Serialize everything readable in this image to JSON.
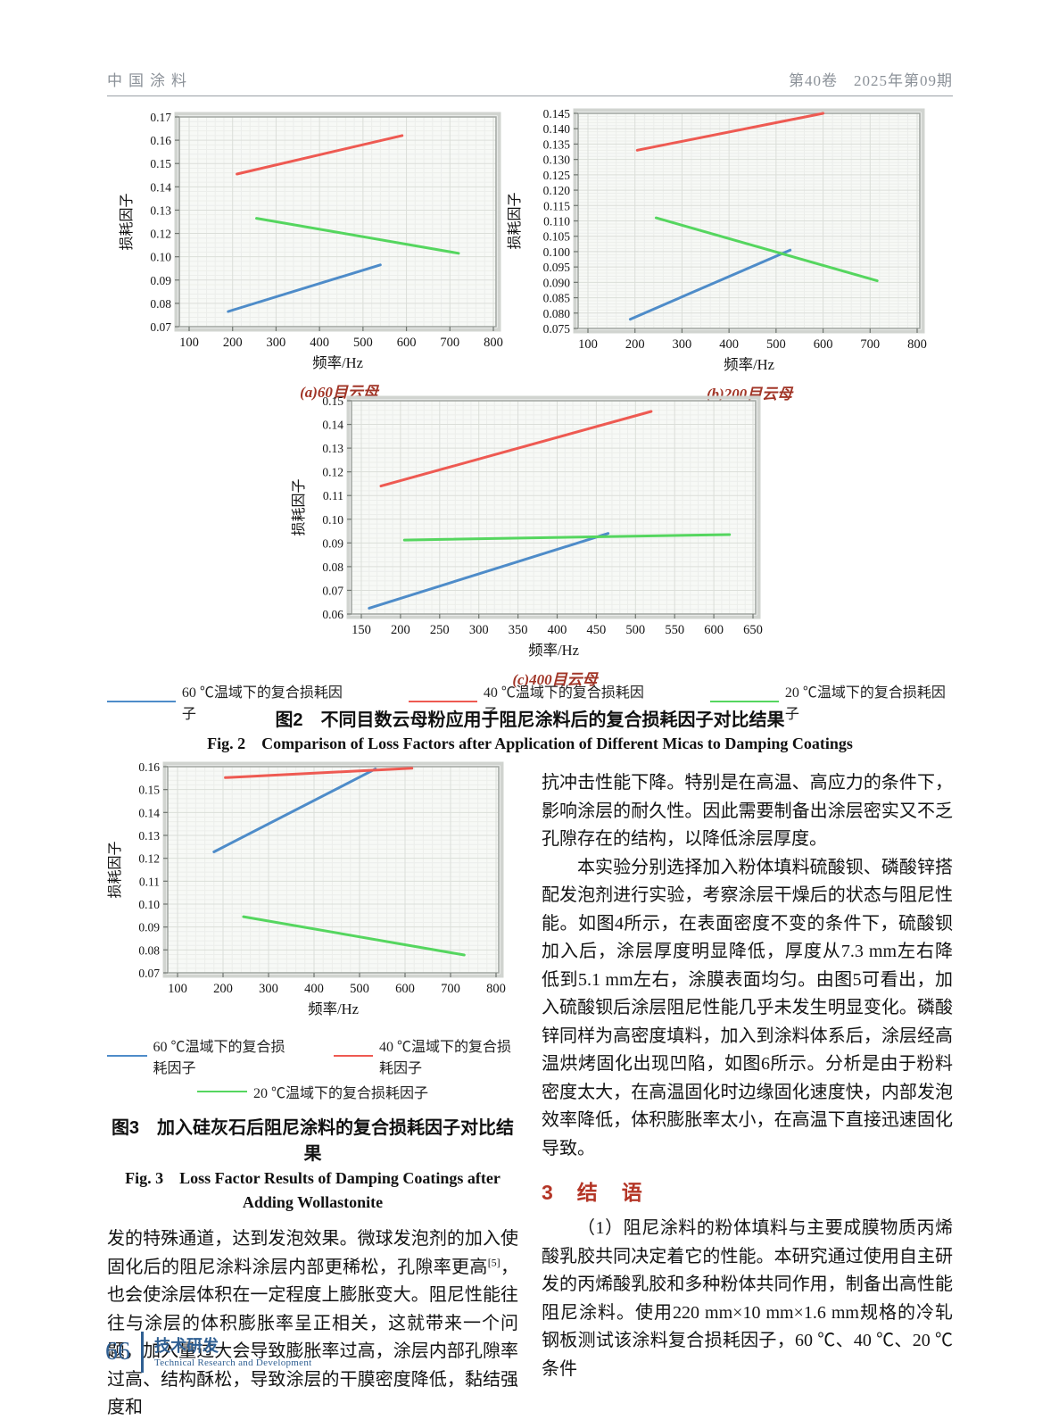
{
  "header": {
    "journal": "中国涂料",
    "issue": "第40卷　2025年第09期"
  },
  "colors": {
    "blue": "#4e8cc9",
    "red": "#ee5a52",
    "green": "#55d65f",
    "caption_red": "#a13527",
    "heading_red": "#b43526",
    "footer_blue": "#2f5f92"
  },
  "chart_data": [
    {
      "id": "fig2a",
      "type": "line",
      "caption": "(a)60目云母",
      "xlabel": "频率/Hz",
      "ylabel": "损耗因子",
      "x_ticks": [
        100,
        200,
        300,
        400,
        500,
        600,
        700,
        800
      ],
      "y_ticks": [
        0.07,
        0.08,
        0.09,
        0.1,
        0.12,
        0.13,
        0.14,
        0.15,
        0.16,
        0.17
      ],
      "y_tick_labels": [
        "0.07",
        "0.08",
        "0.09",
        "0.10",
        "0.12",
        "0.13",
        "0.14",
        "0.15",
        "0.16",
        "0.17"
      ],
      "grid": true,
      "legend_position": "below-figure",
      "series": [
        {
          "name": "60 ℃温域下的复合损耗因子",
          "color": "blue",
          "points": [
            [
              190,
              0.0765
            ],
            [
              540,
              0.0965
            ]
          ]
        },
        {
          "name": "40 ℃温域下的复合损耗因子",
          "color": "red",
          "points": [
            [
              210,
              0.1455
            ],
            [
              590,
              0.162
            ]
          ]
        },
        {
          "name": "20 ℃温域下的复合损耗因子",
          "color": "green",
          "points": [
            [
              255,
              0.1265
            ],
            [
              720,
              0.103
            ]
          ]
        }
      ]
    },
    {
      "id": "fig2b",
      "type": "line",
      "caption": "(b)200目云母",
      "xlabel": "频率/Hz",
      "ylabel": "损耗因子",
      "x_ticks": [
        100,
        200,
        300,
        400,
        500,
        600,
        700,
        800
      ],
      "y_ticks": [
        0.075,
        0.08,
        0.085,
        0.09,
        0.095,
        0.1,
        0.105,
        0.11,
        0.115,
        0.12,
        0.125,
        0.13,
        0.135,
        0.14,
        0.145
      ],
      "y_tick_labels": [
        "0.075",
        "0.080",
        "0.085",
        "0.090",
        "0.095",
        "0.100",
        "0.105",
        "0.110",
        "0.115",
        "0.120",
        "0.125",
        "0.130",
        "0.135",
        "0.140",
        "0.145"
      ],
      "grid": true,
      "legend_position": "below-figure",
      "series": [
        {
          "name": "60 ℃温域下的复合损耗因子",
          "color": "blue",
          "points": [
            [
              190,
              0.078
            ],
            [
              530,
              0.1005
            ]
          ]
        },
        {
          "name": "40 ℃温域下的复合损耗因子",
          "color": "red",
          "points": [
            [
              205,
              0.133
            ],
            [
              600,
              0.145
            ]
          ]
        },
        {
          "name": "20 ℃温域下的复合损耗因子",
          "color": "green",
          "points": [
            [
              245,
              0.111
            ],
            [
              715,
              0.0905
            ]
          ]
        }
      ]
    },
    {
      "id": "fig2c",
      "type": "line",
      "caption": "(c)400目云母",
      "xlabel": "频率/Hz",
      "ylabel": "损耗因子",
      "x_ticks": [
        150,
        200,
        250,
        300,
        350,
        400,
        450,
        500,
        550,
        600,
        650
      ],
      "y_ticks": [
        0.06,
        0.07,
        0.08,
        0.09,
        0.1,
        0.11,
        0.12,
        0.13,
        0.14,
        0.15
      ],
      "y_tick_labels": [
        "0.06",
        "0.07",
        "0.08",
        "0.09",
        "0.10",
        "0.11",
        "0.12",
        "0.13",
        "0.14",
        "0.15"
      ],
      "grid": true,
      "legend_position": "below-figure",
      "series": [
        {
          "name": "60 ℃温域下的复合损耗因子",
          "color": "blue",
          "points": [
            [
              160,
              0.0625
            ],
            [
              465,
              0.094
            ]
          ]
        },
        {
          "name": "40 ℃温域下的复合损耗因子",
          "color": "red",
          "points": [
            [
              175,
              0.114
            ],
            [
              520,
              0.1455
            ]
          ]
        },
        {
          "name": "20 ℃温域下的复合损耗因子",
          "color": "green",
          "points": [
            [
              205,
              0.0912
            ],
            [
              620,
              0.0935
            ]
          ]
        }
      ]
    },
    {
      "id": "fig3",
      "type": "line",
      "caption": "",
      "xlabel": "频率/Hz",
      "ylabel": "损耗因子",
      "x_ticks": [
        100,
        200,
        300,
        400,
        500,
        600,
        700,
        800
      ],
      "y_ticks": [
        0.07,
        0.08,
        0.09,
        0.1,
        0.11,
        0.12,
        0.13,
        0.14,
        0.15,
        0.16
      ],
      "y_tick_labels": [
        "0.07",
        "0.08",
        "0.09",
        "0.10",
        "0.11",
        "0.12",
        "0.13",
        "0.14",
        "0.15",
        "0.16"
      ],
      "grid": true,
      "legend_position": "below-figure",
      "series": [
        {
          "name": "60 ℃温域下的复合损耗因子",
          "color": "blue",
          "points": [
            [
              180,
              0.1228
            ],
            [
              535,
              0.159
            ]
          ]
        },
        {
          "name": "40 ℃温域下的复合损耗因子",
          "color": "red",
          "points": [
            [
              205,
              0.1552
            ],
            [
              615,
              0.1593
            ]
          ]
        },
        {
          "name": "20 ℃温域下的复合损耗因子",
          "color": "green",
          "points": [
            [
              245,
              0.0945
            ],
            [
              730,
              0.0778
            ]
          ]
        }
      ]
    }
  ],
  "figure2": {
    "caption_zh": "图2　不同目数云母粉应用于阻尼涂料后的复合损耗因子对比结果",
    "caption_en": "Fig. 2　Comparison of Loss Factors after Application of Different Micas to Damping Coatings",
    "legend": [
      {
        "label": "60 ℃温域下的复合损耗因子",
        "color": "blue"
      },
      {
        "label": "40 ℃温域下的复合损耗因子",
        "color": "red"
      },
      {
        "label": "20 ℃温域下的复合损耗因子",
        "color": "green"
      }
    ]
  },
  "figure3": {
    "caption_zh": "图3　加入硅灰石后阻尼涂料的复合损耗因子对比结果",
    "caption_en1": "Fig. 3　Loss Factor Results of Damping Coatings after",
    "caption_en2": "Adding Wollastonite",
    "legend_row1": [
      {
        "label": "60 ℃温域下的复合损耗因子",
        "color": "blue"
      },
      {
        "label": "40 ℃温域下的复合损耗因子",
        "color": "red"
      }
    ],
    "legend_row2": [
      {
        "label": "20 ℃温域下的复合损耗因子",
        "color": "green"
      }
    ]
  },
  "left_column": {
    "para1_a": "发的特殊通道，达到发泡效果。微球发泡剂的加入使固化后的阻尼涂料涂层内部更稀松，孔隙率更高",
    "para1_ref": "[5]",
    "para1_b": "，也会使涂层体积在一定程度上膨胀变大。阻尼性能往往与涂层的体积膨胀率呈正相关，这就带来一个问题，加入量过大会导致膨胀率过高，涂层内部孔隙率过高、结构酥松，导致涂层的干膜密度降低，黏结强度和"
  },
  "right_column": {
    "para1": "抗冲击性能下降。特别是在高温、高应力的条件下，影响涂层的耐久性。因此需要制备出涂层密实又不乏孔隙存在的结构，以降低涂层厚度。",
    "para2": "本实验分别选择加入粉体填料硫酸钡、磷酸锌搭配发泡剂进行实验，考察涂层干燥后的状态与阻尼性能。如图4所示，在表面密度不变的条件下，硫酸钡加入后，涂层厚度明显降低，厚度从7.3 mm左右降低到5.1 mm左右，涂膜表面均匀。由图5可看出，加入硫酸钡后涂层阻尼性能几乎未发生明显变化。磷酸锌同样为高密度填料，加入到涂料体系后，涂层经高温烘烤固化出现凹陷，如图6所示。分析是由于粉料密度太大，在高温固化时边缘固化速度快，内部发泡效率降低，体积膨胀率太小，在高温下直接迅速固化导致。",
    "section_heading": "3　结　语",
    "para3": "（1）阻尼涂料的粉体填料与主要成膜物质丙烯酸乳胶共同决定着它的性能。本研究通过使用自主研发的丙烯酸乳胶和多种粉体共同作用，制备出高性能阻尼涂料。使用220 mm×10 mm×1.6 mm规格的冷轧钢板测试该涂料复合损耗因子，60 ℃、40 ℃、20 ℃条件"
  },
  "footer": {
    "page": "66",
    "section_zh": "技术研发",
    "section_en": "Technical Research and Development"
  }
}
